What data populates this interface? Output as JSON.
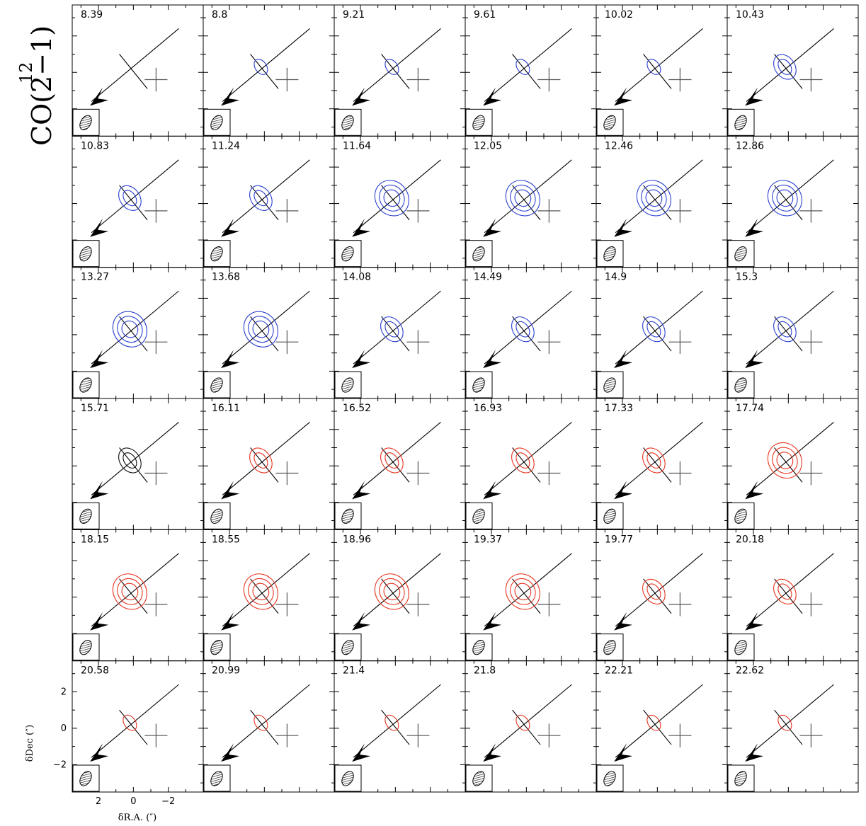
{
  "figure": {
    "molecule_mass": "12",
    "molecule_rest": "CO(2−1)",
    "ylabel": "δDec (″)",
    "xlabel": "δR.A. (″)"
  },
  "chart_data": {
    "type": "contour",
    "title": "12CO(2−1)",
    "xlabel": "δR.A. (″)",
    "ylabel": "δDec (″)",
    "xlim": [
      3.5,
      -4.0
    ],
    "ylim": [
      -3.5,
      3.7
    ],
    "x_ticks": [
      2,
      0,
      -2
    ],
    "y_ticks": [
      2,
      0,
      -2
    ],
    "layout": "6 columns x 6 rows, shared axes",
    "colors": {
      "blue": "#2b3fd0",
      "red": "#e6331f",
      "systemic": "#111111",
      "cross": "#555555"
    },
    "channels": [
      "8.39",
      "8.8",
      "9.21",
      "9.61",
      "10.02",
      "10.43",
      "10.83",
      "11.24",
      "11.64",
      "12.05",
      "12.46",
      "12.86",
      "13.27",
      "13.68",
      "14.08",
      "14.49",
      "14.9",
      "15.3",
      "15.71",
      "16.11",
      "16.52",
      "16.93",
      "17.33",
      "17.74",
      "18.15",
      "18.55",
      "18.96",
      "19.37",
      "19.77",
      "20.18",
      "20.58",
      "20.99",
      "21.4",
      "21.8",
      "22.21",
      "22.62"
    ],
    "channel_color": [
      "blue",
      "blue",
      "blue",
      "blue",
      "blue",
      "blue",
      "blue",
      "blue",
      "blue",
      "blue",
      "blue",
      "blue",
      "blue",
      "blue",
      "blue",
      "blue",
      "blue",
      "blue",
      "black",
      "red",
      "red",
      "red",
      "red",
      "red",
      "red",
      "red",
      "red",
      "red",
      "red",
      "red",
      "red",
      "red",
      "red",
      "red",
      "red",
      "red"
    ],
    "emission_peak_level": [
      0,
      1,
      1,
      1,
      1,
      2,
      2,
      2,
      3,
      3,
      3,
      3,
      3,
      3,
      2,
      2,
      2,
      2,
      2,
      2,
      2,
      2,
      2,
      3,
      3,
      3,
      3,
      3,
      2,
      2,
      1,
      1,
      1,
      1,
      1,
      1
    ],
    "source_position": [
      0,
      0
    ],
    "companion_position": [
      -1.3,
      -0.4
    ],
    "arrow_direction": "towards south-east"
  }
}
